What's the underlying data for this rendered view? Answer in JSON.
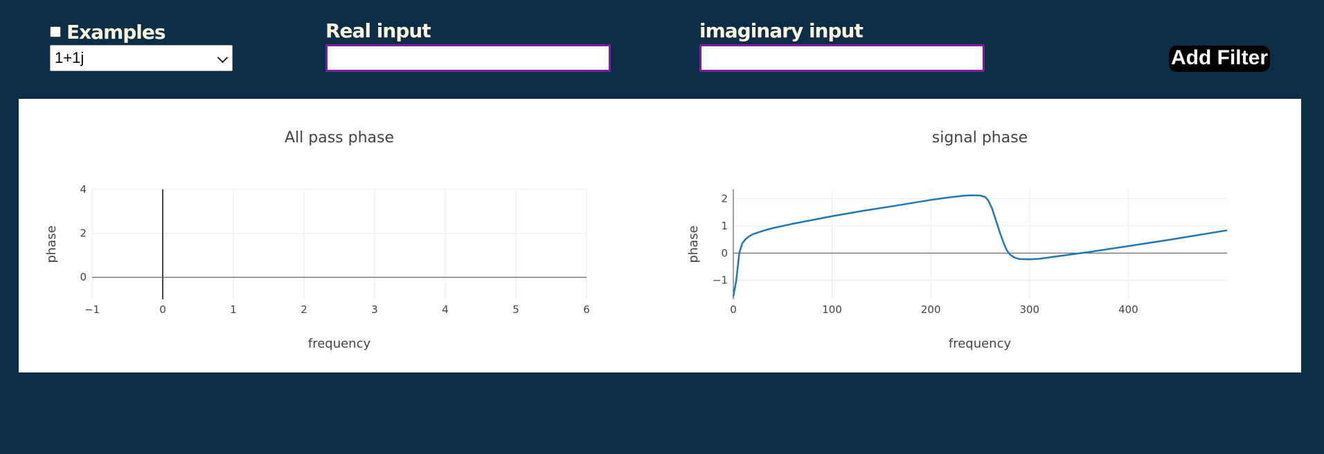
{
  "toolbar": {
    "examples_label": "Examples",
    "examples_checked": false,
    "examples_selected": "1+1j",
    "real_label": "Real input",
    "real_value": "",
    "imag_label": "imaginary input",
    "imag_value": "",
    "add_filter_label": "Add Filter"
  },
  "colors": {
    "background": "#0c2d48",
    "label_text": "#fbf3dc",
    "input_border": "#7b1fa2",
    "line": "#1f77b4"
  },
  "chart_data": [
    {
      "type": "line",
      "title": "All pass phase",
      "xlabel": "frequency",
      "ylabel": "phase",
      "xlim": [
        -1,
        6
      ],
      "ylim": [
        -1,
        4
      ],
      "xticks": [
        -1,
        0,
        1,
        2,
        3,
        4,
        5,
        6
      ],
      "yticks": [
        0,
        2,
        4
      ],
      "grid": true,
      "series": []
    },
    {
      "type": "line",
      "title": "signal phase",
      "xlabel": "frequency",
      "ylabel": "phase",
      "xlim": [
        0,
        500
      ],
      "ylim": [
        -1.7,
        2.35
      ],
      "xticks": [
        0,
        100,
        200,
        300,
        400
      ],
      "yticks": [
        -1,
        0,
        1,
        2
      ],
      "grid": true,
      "series": [
        {
          "x": [
            0,
            3,
            6,
            9,
            12,
            16,
            20,
            30,
            40,
            60,
            80,
            100,
            130,
            160,
            200,
            220,
            235,
            243,
            250,
            255,
            258,
            262,
            266,
            270,
            274,
            277,
            280,
            285,
            290,
            300,
            310,
            320,
            340,
            360,
            400,
            440,
            500
          ],
          "y": [
            -1.6,
            -1.0,
            0.0,
            0.35,
            0.5,
            0.62,
            0.7,
            0.82,
            0.92,
            1.08,
            1.22,
            1.36,
            1.55,
            1.72,
            1.96,
            2.06,
            2.12,
            2.13,
            2.12,
            2.07,
            1.95,
            1.65,
            1.2,
            0.75,
            0.35,
            0.1,
            -0.05,
            -0.17,
            -0.22,
            -0.23,
            -0.21,
            -0.16,
            -0.06,
            0.04,
            0.26,
            0.48,
            0.84
          ]
        }
      ]
    }
  ]
}
